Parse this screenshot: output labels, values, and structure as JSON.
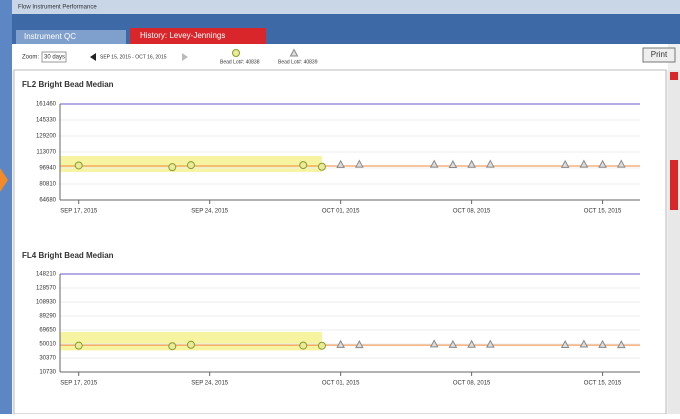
{
  "window_title": "Flow Instrument Performance",
  "tabs": [
    "Instrument QC",
    "History: Levey-Jennings"
  ],
  "toolbar": {
    "zoom_label": "Zoom:",
    "zoom_value": "30 days",
    "date_range": "SEP 15, 2015 - OCT 16, 2015",
    "print": "Print"
  },
  "chart_data": [
    {
      "type": "scatter",
      "title": "FL2 Bright Bead Median",
      "xlim": [
        "2015-09-16",
        "2015-10-17"
      ],
      "xticks": [
        {
          "value": "2015-09-17",
          "label": "SEP 17, 2015"
        },
        {
          "value": "2015-09-24",
          "label": "SEP 24, 2015"
        },
        {
          "value": "2015-10-01",
          "label": "OCT 01, 2015"
        },
        {
          "value": "2015-10-08",
          "label": "OCT 08, 2015"
        },
        {
          "value": "2015-10-15",
          "label": "OCT 15, 2015"
        }
      ],
      "ylim": [
        64680,
        161460
      ],
      "yticks": [
        64680,
        80810,
        96940,
        113070,
        129200,
        145330,
        161460
      ],
      "grid": true,
      "mean": 99000,
      "mean_color": "#f08a3c",
      "band": {
        "x": [
          "2015-09-16",
          "2015-09-30"
        ],
        "y": [
          93000,
          109000
        ],
        "color": "#f4f08a"
      },
      "series": [
        {
          "name": "Bead Lot#: 40838",
          "color": "#8a9a2a",
          "marker": "circle",
          "x": [
            "2015-09-17",
            "2015-09-22",
            "2015-09-23",
            "2015-09-29",
            "2015-09-30"
          ],
          "values": [
            99500,
            97800,
            99800,
            99900,
            98200
          ]
        },
        {
          "name": "Bead Lot#: 40839",
          "color": "#888888",
          "marker": "triangle",
          "x": [
            "2015-10-01",
            "2015-10-02",
            "2015-10-06",
            "2015-10-07",
            "2015-10-08",
            "2015-10-09",
            "2015-10-13",
            "2015-10-14",
            "2015-10-15",
            "2015-10-16"
          ],
          "values": [
            100600,
            100900,
            100800,
            100500,
            100700,
            100900,
            100600,
            100800,
            100700,
            100900
          ]
        }
      ]
    },
    {
      "type": "scatter",
      "title": "FL4 Bright Bead Median",
      "xlim": [
        "2015-09-16",
        "2015-10-17"
      ],
      "xticks": [
        {
          "value": "2015-09-17",
          "label": "SEP 17, 2015"
        },
        {
          "value": "2015-09-24",
          "label": "SEP 24, 2015"
        },
        {
          "value": "2015-10-01",
          "label": "OCT 01, 2015"
        },
        {
          "value": "2015-10-08",
          "label": "OCT 08, 2015"
        },
        {
          "value": "2015-10-15",
          "label": "OCT 15, 2015"
        }
      ],
      "ylim": [
        10730,
        148210
      ],
      "yticks": [
        10730,
        30370,
        50010,
        69650,
        89290,
        108930,
        128570,
        148210
      ],
      "grid": true,
      "mean": 48500,
      "mean_color": "#f08a3c",
      "band": {
        "x": [
          "2015-09-16",
          "2015-09-30"
        ],
        "y": [
          41000,
          67000
        ],
        "color": "#f4f08a"
      },
      "series": [
        {
          "color": "#8a9a2a",
          "marker": "circle",
          "x": [
            "2015-09-17",
            "2015-09-22",
            "2015-09-23",
            "2015-09-29",
            "2015-09-30"
          ],
          "values": [
            47700,
            46900,
            48900,
            47800,
            47600
          ]
        },
        {
          "color": "#888888",
          "marker": "triangle",
          "x": [
            "2015-10-01",
            "2015-10-02",
            "2015-10-06",
            "2015-10-07",
            "2015-10-08",
            "2015-10-09",
            "2015-10-13",
            "2015-10-14",
            "2015-10-15",
            "2015-10-16"
          ],
          "values": [
            49500,
            49200,
            50100,
            49400,
            49600,
            49800,
            49300,
            50000,
            49400,
            49100
          ]
        }
      ]
    }
  ]
}
